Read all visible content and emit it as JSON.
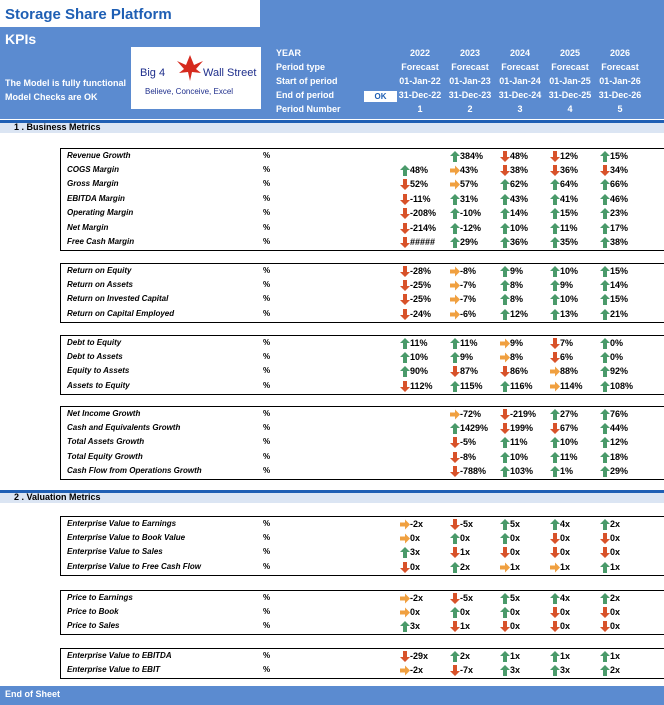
{
  "app": {
    "title": "Storage Share Platform",
    "subtitle": "KPIs",
    "status_line1": "The Model is fully functional",
    "status_line2": "Model Checks are OK",
    "ok_label": "OK",
    "logo_text_left": "Big 4",
    "logo_text_right": "Wall Street",
    "logo_tagline": "Believe, Conceive, Excel",
    "end_label": "End of Sheet"
  },
  "colors": {
    "up": "#4a9a6a",
    "down": "#d8522a",
    "flat": "#f0a040",
    "header": "#5b8bd0",
    "title": "#1f5fb4"
  },
  "header": {
    "labels": [
      "YEAR",
      "Period type",
      "Start of period",
      "End of period",
      "Period Number"
    ],
    "columns": [
      {
        "year": "2022",
        "type": "Forecast",
        "start": "01-Jan-22",
        "end": "31-Dec-22",
        "num": "1"
      },
      {
        "year": "2023",
        "type": "Forecast",
        "start": "01-Jan-23",
        "end": "31-Dec-23",
        "num": "2"
      },
      {
        "year": "2024",
        "type": "Forecast",
        "start": "01-Jan-24",
        "end": "31-Dec-24",
        "num": "3"
      },
      {
        "year": "2025",
        "type": "Forecast",
        "start": "01-Jan-25",
        "end": "31-Dec-25",
        "num": "4"
      },
      {
        "year": "2026",
        "type": "Forecast",
        "start": "01-Jan-26",
        "end": "31-Dec-26",
        "num": "5"
      }
    ]
  },
  "sections": [
    {
      "title": "1 .  Business Metrics",
      "groups": [
        {
          "rows": [
            {
              "label": "Revenue Growth",
              "unit": "%",
              "cells": [
                null,
                [
                  "up",
                  "384%"
                ],
                [
                  "down",
                  "48%"
                ],
                [
                  "down",
                  "12%"
                ],
                [
                  "up",
                  "15%"
                ]
              ]
            },
            {
              "label": "COGS Margin",
              "unit": "%",
              "cells": [
                [
                  "up",
                  "48%"
                ],
                [
                  "flat",
                  "43%"
                ],
                [
                  "down",
                  "38%"
                ],
                [
                  "down",
                  "36%"
                ],
                [
                  "down",
                  "34%"
                ]
              ]
            },
            {
              "label": "Gross Margin",
              "unit": "%",
              "cells": [
                [
                  "down",
                  "52%"
                ],
                [
                  "flat",
                  "57%"
                ],
                [
                  "up",
                  "62%"
                ],
                [
                  "up",
                  "64%"
                ],
                [
                  "up",
                  "66%"
                ]
              ]
            },
            {
              "label": "EBITDA Margin",
              "unit": "%",
              "cells": [
                [
                  "down",
                  "-11%"
                ],
                [
                  "up",
                  "31%"
                ],
                [
                  "up",
                  "43%"
                ],
                [
                  "up",
                  "41%"
                ],
                [
                  "up",
                  "46%"
                ]
              ]
            },
            {
              "label": "Operating Margin",
              "unit": "%",
              "cells": [
                [
                  "down",
                  "-208%"
                ],
                [
                  "up",
                  "-10%"
                ],
                [
                  "up",
                  "14%"
                ],
                [
                  "up",
                  "15%"
                ],
                [
                  "up",
                  "23%"
                ]
              ]
            },
            {
              "label": "Net Margin",
              "unit": "%",
              "cells": [
                [
                  "down",
                  "-214%"
                ],
                [
                  "up",
                  "-12%"
                ],
                [
                  "up",
                  "10%"
                ],
                [
                  "up",
                  "11%"
                ],
                [
                  "up",
                  "17%"
                ]
              ]
            },
            {
              "label": "Free Cash Margin",
              "unit": "%",
              "cells": [
                [
                  "down",
                  "#####"
                ],
                [
                  "up",
                  "29%"
                ],
                [
                  "up",
                  "36%"
                ],
                [
                  "up",
                  "35%"
                ],
                [
                  "up",
                  "38%"
                ]
              ]
            }
          ]
        },
        {
          "rows": [
            {
              "label": "Return on Equity",
              "unit": "%",
              "cells": [
                [
                  "down",
                  "-28%"
                ],
                [
                  "flat",
                  "-8%"
                ],
                [
                  "up",
                  "9%"
                ],
                [
                  "up",
                  "10%"
                ],
                [
                  "up",
                  "15%"
                ]
              ]
            },
            {
              "label": "Return on Assets",
              "unit": "%",
              "cells": [
                [
                  "down",
                  "-25%"
                ],
                [
                  "flat",
                  "-7%"
                ],
                [
                  "up",
                  "8%"
                ],
                [
                  "up",
                  "9%"
                ],
                [
                  "up",
                  "14%"
                ]
              ]
            },
            {
              "label": "Return on Invested Capital",
              "unit": "%",
              "cells": [
                [
                  "down",
                  "-25%"
                ],
                [
                  "flat",
                  "-7%"
                ],
                [
                  "up",
                  "8%"
                ],
                [
                  "up",
                  "10%"
                ],
                [
                  "up",
                  "15%"
                ]
              ]
            },
            {
              "label": "Return on Capital Employed",
              "unit": "%",
              "cells": [
                [
                  "down",
                  "-24%"
                ],
                [
                  "flat",
                  "-6%"
                ],
                [
                  "up",
                  "12%"
                ],
                [
                  "up",
                  "13%"
                ],
                [
                  "up",
                  "21%"
                ]
              ]
            }
          ]
        },
        {
          "rows": [
            {
              "label": "Debt to Equity",
              "unit": "%",
              "cells": [
                [
                  "up",
                  "11%"
                ],
                [
                  "up",
                  "11%"
                ],
                [
                  "flat",
                  "9%"
                ],
                [
                  "down",
                  "7%"
                ],
                [
                  "up",
                  "0%"
                ]
              ]
            },
            {
              "label": "Debt to Assets",
              "unit": "%",
              "cells": [
                [
                  "up",
                  "10%"
                ],
                [
                  "up",
                  "9%"
                ],
                [
                  "flat",
                  "8%"
                ],
                [
                  "down",
                  "6%"
                ],
                [
                  "up",
                  "0%"
                ]
              ]
            },
            {
              "label": "Equity to Assets",
              "unit": "%",
              "cells": [
                [
                  "up",
                  "90%"
                ],
                [
                  "down",
                  "87%"
                ],
                [
                  "down",
                  "86%"
                ],
                [
                  "flat",
                  "88%"
                ],
                [
                  "up",
                  "92%"
                ]
              ]
            },
            {
              "label": "Assets to Equity",
              "unit": "%",
              "cells": [
                [
                  "down",
                  "112%"
                ],
                [
                  "up",
                  "115%"
                ],
                [
                  "up",
                  "116%"
                ],
                [
                  "flat",
                  "114%"
                ],
                [
                  "up",
                  "108%"
                ]
              ]
            }
          ]
        },
        {
          "rows": [
            {
              "label": "Net Income Growth",
              "unit": "%",
              "cells": [
                null,
                [
                  "flat",
                  "-72%"
                ],
                [
                  "down",
                  "-219%"
                ],
                [
                  "up",
                  "27%"
                ],
                [
                  "up",
                  "76%"
                ]
              ]
            },
            {
              "label": "Cash and Equivalents Growth",
              "unit": "%",
              "cells": [
                null,
                [
                  "up",
                  "1429%"
                ],
                [
                  "down",
                  "199%"
                ],
                [
                  "down",
                  "67%"
                ],
                [
                  "up",
                  "44%"
                ]
              ]
            },
            {
              "label": "Total Assets Growth",
              "unit": "%",
              "cells": [
                null,
                [
                  "down",
                  "-5%"
                ],
                [
                  "up",
                  "11%"
                ],
                [
                  "up",
                  "10%"
                ],
                [
                  "up",
                  "12%"
                ]
              ]
            },
            {
              "label": "Total Equity Growth",
              "unit": "%",
              "cells": [
                null,
                [
                  "down",
                  "-8%"
                ],
                [
                  "up",
                  "10%"
                ],
                [
                  "up",
                  "11%"
                ],
                [
                  "up",
                  "18%"
                ]
              ]
            },
            {
              "label": "Cash Flow from Operations Growth",
              "unit": "%",
              "cells": [
                null,
                [
                  "down",
                  "-788%"
                ],
                [
                  "up",
                  "103%"
                ],
                [
                  "up",
                  "1%"
                ],
                [
                  "up",
                  "29%"
                ]
              ]
            }
          ]
        }
      ]
    },
    {
      "title": "2 .  Valuation Metrics",
      "groups": [
        {
          "rows": [
            {
              "label": "Enterprise Value to Earnings",
              "unit": "%",
              "cells": [
                [
                  "flat",
                  "-2x"
                ],
                [
                  "down",
                  "-5x"
                ],
                [
                  "up",
                  "5x"
                ],
                [
                  "up",
                  "4x"
                ],
                [
                  "up",
                  "2x"
                ]
              ]
            },
            {
              "label": "Enterprise Value to Book Value",
              "unit": "%",
              "cells": [
                [
                  "flat",
                  "0x"
                ],
                [
                  "up",
                  "0x"
                ],
                [
                  "up",
                  "0x"
                ],
                [
                  "down",
                  "0x"
                ],
                [
                  "down",
                  "0x"
                ]
              ]
            },
            {
              "label": "Enterprise Value to Sales",
              "unit": "%",
              "cells": [
                [
                  "up",
                  "3x"
                ],
                [
                  "down",
                  "1x"
                ],
                [
                  "down",
                  "0x"
                ],
                [
                  "down",
                  "0x"
                ],
                [
                  "down",
                  "0x"
                ]
              ]
            },
            {
              "label": "Enterprise Value to Free Cash Flow",
              "unit": "%",
              "cells": [
                [
                  "down",
                  "0x"
                ],
                [
                  "up",
                  "2x"
                ],
                [
                  "flat",
                  "1x"
                ],
                [
                  "flat",
                  "1x"
                ],
                [
                  "up",
                  "1x"
                ]
              ]
            }
          ]
        },
        {
          "rows": [
            {
              "label": "Price to Earnings",
              "unit": "%",
              "cells": [
                [
                  "flat",
                  "-2x"
                ],
                [
                  "down",
                  "-5x"
                ],
                [
                  "up",
                  "5x"
                ],
                [
                  "up",
                  "4x"
                ],
                [
                  "up",
                  "2x"
                ]
              ]
            },
            {
              "label": "Price to Book",
              "unit": "%",
              "cells": [
                [
                  "flat",
                  "0x"
                ],
                [
                  "up",
                  "0x"
                ],
                [
                  "up",
                  "0x"
                ],
                [
                  "down",
                  "0x"
                ],
                [
                  "down",
                  "0x"
                ]
              ]
            },
            {
              "label": "Price to Sales",
              "unit": "%",
              "cells": [
                [
                  "up",
                  "3x"
                ],
                [
                  "down",
                  "1x"
                ],
                [
                  "down",
                  "0x"
                ],
                [
                  "down",
                  "0x"
                ],
                [
                  "down",
                  "0x"
                ]
              ]
            }
          ]
        },
        {
          "rows": [
            {
              "label": "Enterprise Value to EBITDA",
              "unit": "%",
              "cells": [
                [
                  "down",
                  "-29x"
                ],
                [
                  "up",
                  "2x"
                ],
                [
                  "up",
                  "1x"
                ],
                [
                  "up",
                  "1x"
                ],
                [
                  "up",
                  "1x"
                ]
              ]
            },
            {
              "label": "Enterprise Value to EBIT",
              "unit": "%",
              "cells": [
                [
                  "flat",
                  "-2x"
                ],
                [
                  "down",
                  "-7x"
                ],
                [
                  "up",
                  "3x"
                ],
                [
                  "up",
                  "3x"
                ],
                [
                  "up",
                  "2x"
                ]
              ]
            }
          ]
        }
      ]
    }
  ]
}
